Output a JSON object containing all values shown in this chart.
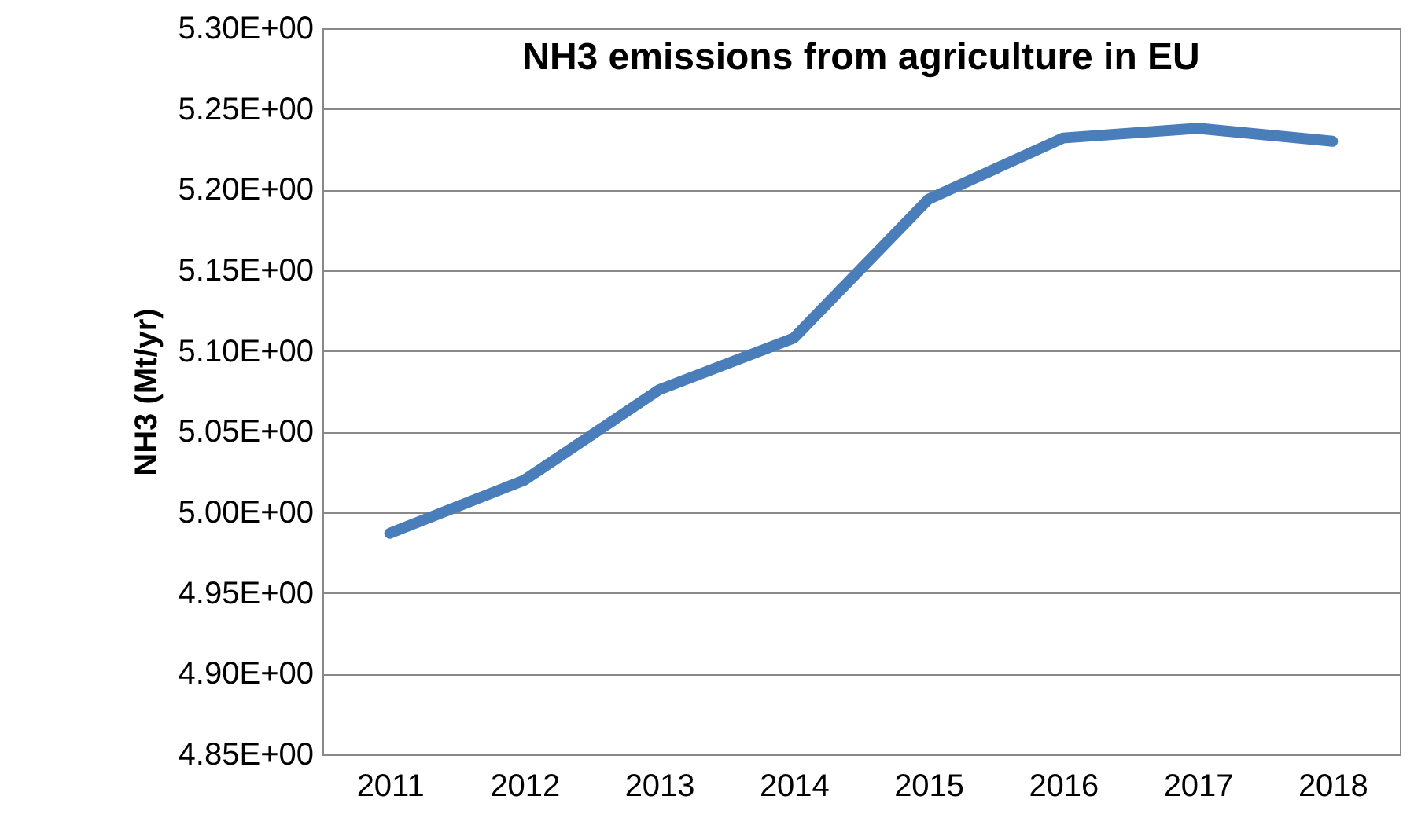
{
  "chart_data": {
    "type": "line",
    "title": "NH3 emissions from agriculture in EU",
    "ylabel": "NH3 (Mt/yr)",
    "categories": [
      "2011",
      "2012",
      "2013",
      "2014",
      "2015",
      "2016",
      "2017",
      "2018"
    ],
    "series": [
      {
        "color": "#4a7ebb",
        "values": [
          4.987,
          5.02,
          5.076,
          5.108,
          5.194,
          5.232,
          5.238,
          5.23
        ]
      }
    ],
    "ylim": [
      4.85,
      5.3
    ],
    "yticks": [
      {
        "value": 4.85,
        "label": "4.85E+00"
      },
      {
        "value": 4.9,
        "label": "4.90E+00"
      },
      {
        "value": 4.95,
        "label": "4.95E+00"
      },
      {
        "value": 5.0,
        "label": "5.00E+00"
      },
      {
        "value": 5.05,
        "label": "5.05E+00"
      },
      {
        "value": 5.1,
        "label": "5.10E+00"
      },
      {
        "value": 5.15,
        "label": "5.15E+00"
      },
      {
        "value": 5.2,
        "label": "5.20E+00"
      },
      {
        "value": 5.25,
        "label": "5.25E+00"
      },
      {
        "value": 5.3,
        "label": "5.30E+00"
      }
    ],
    "grid": "y",
    "marker": "none",
    "line_style": "solid"
  }
}
